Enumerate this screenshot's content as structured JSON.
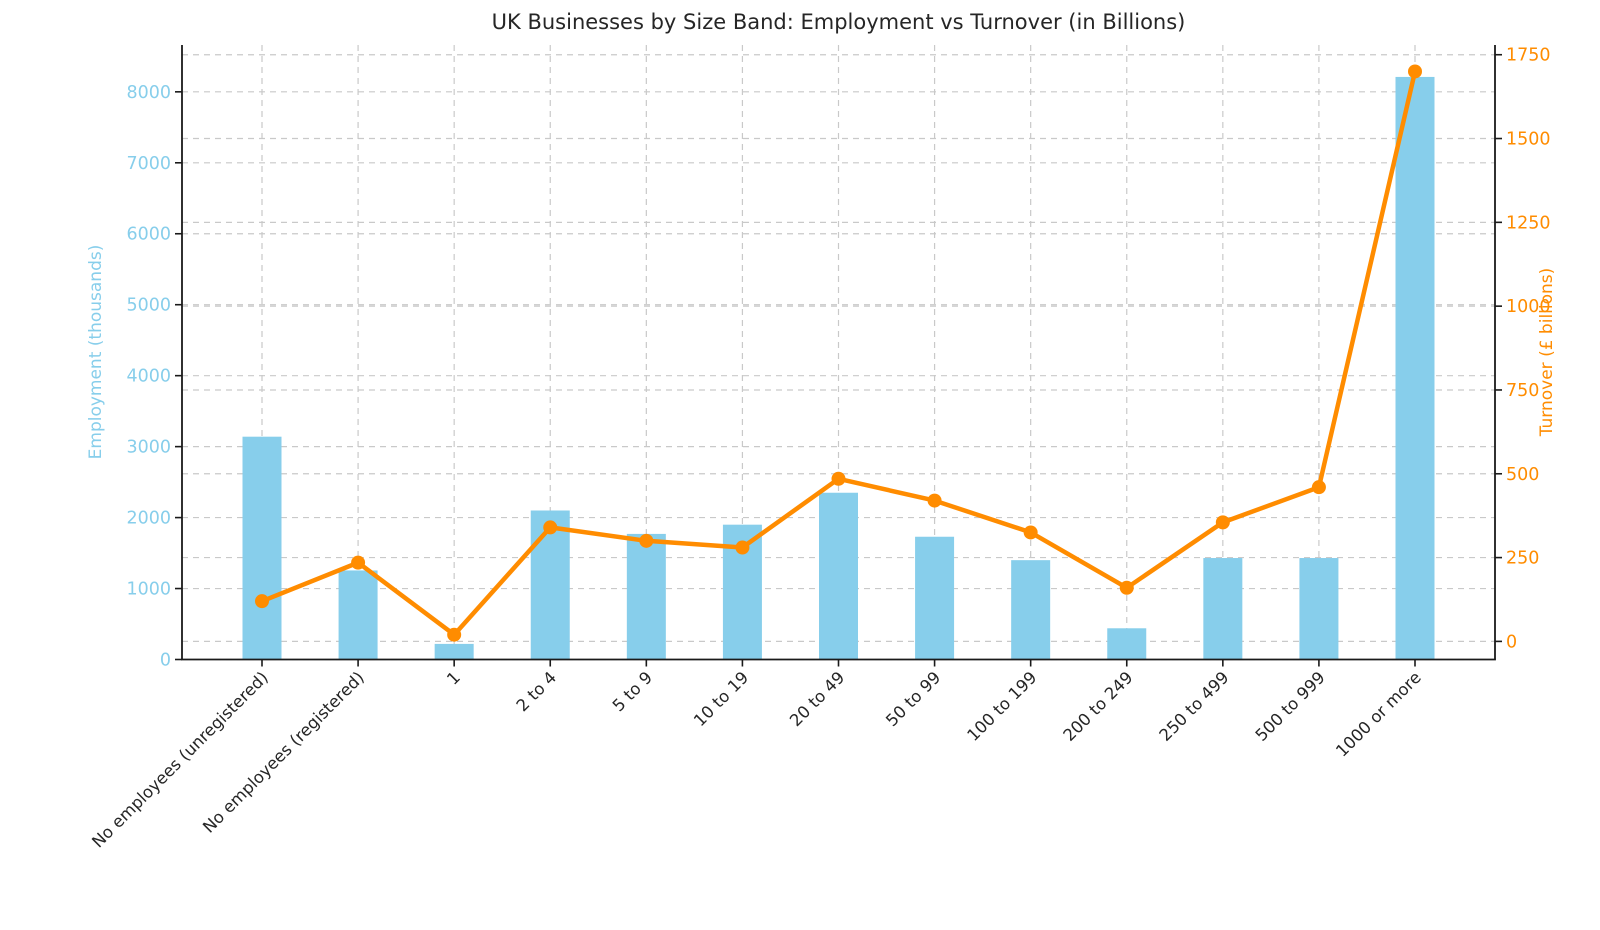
{
  "title": "UK Businesses by Size Band: Employment vs Turnover (in Billions)",
  "chart_data": {
    "type": "bar",
    "subtype": "dual-axis bar + line combo",
    "title": "UK Businesses by Size Band: Employment vs Turnover (in Billions)",
    "categories": [
      "No employees (unregistered)",
      "No employees (registered)",
      "1",
      "2 to 4",
      "5 to 9",
      "10 to 19",
      "20 to 49",
      "50 to 99",
      "100 to 199",
      "200 to 249",
      "250 to 499",
      "500 to 999",
      "1000 or more"
    ],
    "series": [
      {
        "name": "Employment (thousands)",
        "type": "bar",
        "axis": "left",
        "color": "#87CEEB",
        "values": [
          3140,
          1255,
          220,
          2100,
          1770,
          1900,
          2350,
          1730,
          1400,
          440,
          1430,
          1430,
          8210
        ]
      },
      {
        "name": "Turnover (£ billions)",
        "type": "line",
        "axis": "right",
        "color": "#FF8C00",
        "values": [
          120,
          235,
          20,
          340,
          300,
          280,
          485,
          420,
          325,
          160,
          355,
          460,
          1700
        ]
      }
    ],
    "left_axis": {
      "label": "Employment (thousands)",
      "color": "#87CEEB",
      "ticks": [
        0,
        1000,
        2000,
        3000,
        4000,
        5000,
        6000,
        7000,
        8000
      ],
      "range": [
        0,
        8660
      ]
    },
    "right_axis": {
      "label": "Turnover (£ billions)",
      "color": "#FF8C00",
      "ticks": [
        0,
        250,
        500,
        750,
        1000,
        1250,
        1500,
        1750
      ],
      "range": [
        -54,
        1779
      ]
    },
    "xlabel": "",
    "x_tick_rotation_deg": 45,
    "grid": {
      "show": true,
      "style": "dashed",
      "color": "#c9c9c9"
    },
    "legend": "none",
    "spine_color": "#1a1a1a",
    "tick_label_color_x": "#262626"
  }
}
